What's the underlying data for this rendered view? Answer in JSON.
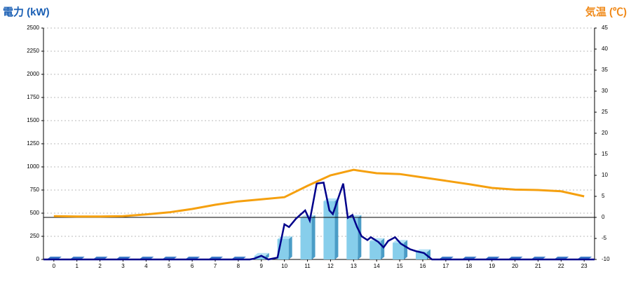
{
  "chart_data": {
    "type": "bar-line",
    "y_title": "電力 (kW)",
    "y2_title": "気温 (℃)",
    "xlim": [
      -0.45,
      23.45
    ],
    "xticks": [
      0,
      1,
      2,
      3,
      4,
      5,
      6,
      7,
      8,
      9,
      10,
      11,
      12,
      13,
      14,
      15,
      16,
      17,
      18,
      19,
      20,
      21,
      22,
      23
    ],
    "ylim": [
      0,
      2500
    ],
    "yticks": [
      0,
      250,
      500,
      750,
      1000,
      1250,
      1500,
      1750,
      2000,
      2250,
      2500
    ],
    "y2lim": [
      -10,
      45
    ],
    "y2ticks": [
      -10,
      -5,
      0,
      5,
      10,
      15,
      20,
      25,
      30,
      35,
      40,
      45
    ],
    "grid": true,
    "series": [
      {
        "type": "bar",
        "color": "#87ceeb",
        "x": [
          0,
          1,
          2,
          3,
          4,
          5,
          6,
          7,
          8,
          9,
          10,
          11,
          12,
          13,
          14,
          15,
          16,
          17,
          18,
          19,
          20,
          21,
          22,
          23
        ],
        "values": [
          0,
          0,
          0,
          0,
          0,
          0,
          0,
          0,
          0,
          40,
          220,
          450,
          630,
          450,
          200,
          180,
          80,
          0,
          0,
          0,
          0,
          0,
          0,
          0
        ]
      },
      {
        "type": "line",
        "color": "#00008b",
        "x": [
          -0.45,
          8.5,
          8.7,
          9.0,
          9.3,
          9.7,
          10.0,
          10.2,
          10.5,
          10.9,
          11.1,
          11.4,
          11.7,
          11.95,
          12.1,
          12.55,
          12.75,
          12.95,
          13.15,
          13.35,
          13.6,
          13.75,
          14.07,
          14.3,
          14.5,
          14.8,
          15.05,
          15.45,
          15.7,
          16.05,
          16.4,
          23.45
        ],
        "values": [
          0,
          0,
          10,
          40,
          0,
          20,
          380,
          350,
          440,
          530,
          420,
          820,
          830,
          530,
          490,
          820,
          450,
          480,
          350,
          250,
          210,
          240,
          190,
          130,
          200,
          240,
          170,
          110,
          90,
          70,
          0,
          0
        ]
      },
      {
        "type": "line",
        "axis": "y2",
        "color": "#f5a00f",
        "x": [
          0,
          1,
          2,
          3,
          4,
          5,
          6,
          7,
          8,
          9,
          10,
          11,
          12,
          13,
          14,
          15,
          16,
          17,
          18,
          19,
          20,
          21,
          22,
          23
        ],
        "values": [
          0.3,
          0.2,
          0.2,
          0.3,
          0.7,
          1.2,
          2,
          3,
          3.8,
          4.3,
          4.8,
          7.5,
          10,
          11.3,
          10.5,
          10.3,
          9.5,
          8.7,
          7.9,
          7,
          6.6,
          6.5,
          6.2,
          5
        ]
      }
    ]
  }
}
